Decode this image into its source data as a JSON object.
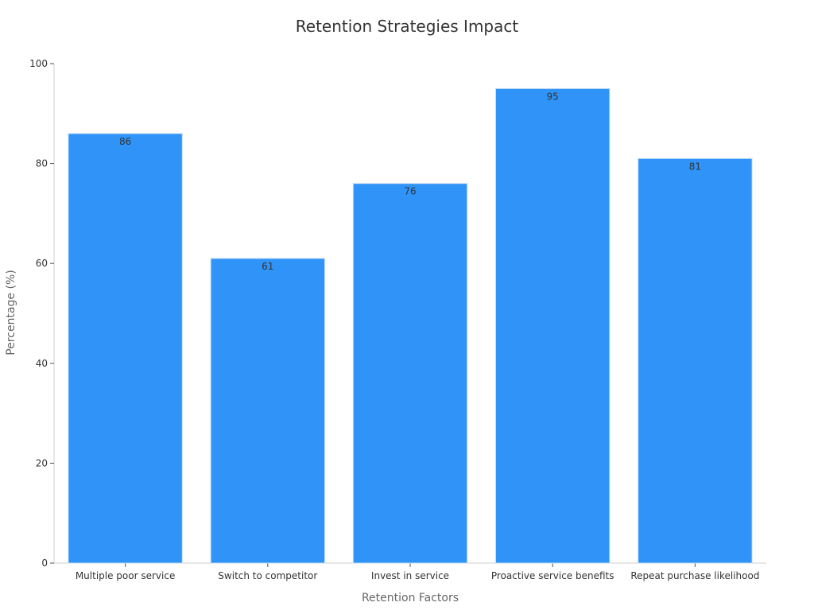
{
  "chart_data": {
    "type": "bar",
    "title": "Retention Strategies Impact",
    "xlabel": "Retention Factors",
    "ylabel": "Percentage (%)",
    "categories": [
      "Multiple poor service",
      "Switch to competitor",
      "Invest in service",
      "Proactive service benefits",
      "Repeat purchase likelihood"
    ],
    "values": [
      86,
      61,
      76,
      95,
      81
    ],
    "ylim": [
      0,
      100
    ],
    "yticks": [
      0,
      20,
      40,
      60,
      80,
      100
    ],
    "grid": false,
    "legend": "none",
    "bar_color": "#2f93f8",
    "bar_edge_color": "#c4ddf6",
    "axis_color": "#cfcfcf"
  }
}
